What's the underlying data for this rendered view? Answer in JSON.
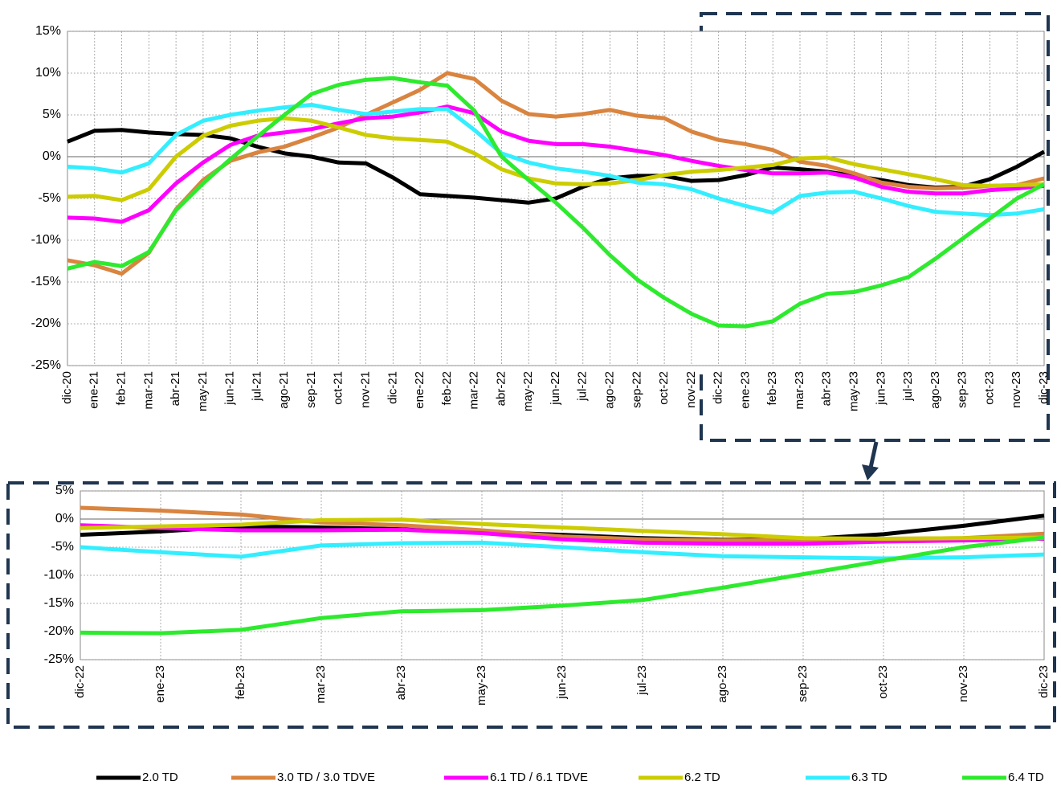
{
  "chart_data": [
    {
      "type": "line",
      "categories": [
        "dic-20",
        "ene-21",
        "feb-21",
        "mar-21",
        "abr-21",
        "may-21",
        "jun-21",
        "jul-21",
        "ago-21",
        "sep-21",
        "oct-21",
        "nov-21",
        "dic-21",
        "ene-22",
        "feb-22",
        "mar-22",
        "abr-22",
        "may-22",
        "jun-22",
        "jul-22",
        "ago-22",
        "sep-22",
        "oct-22",
        "nov-22",
        "dic-22",
        "ene-23",
        "feb-23",
        "mar-23",
        "abr-23",
        "may-23",
        "jun-23",
        "jul-23",
        "ago-23",
        "sep-23",
        "oct-23",
        "nov-23",
        "dic-23"
      ],
      "ylim": [
        -25,
        15
      ],
      "yticks": [
        {
          "value": -25,
          "label": "-25%"
        },
        {
          "value": -20,
          "label": "-20%"
        },
        {
          "value": -15,
          "label": "-15%"
        },
        {
          "value": -10,
          "label": "-10%"
        },
        {
          "value": -5,
          "label": "-5%"
        },
        {
          "value": 0,
          "label": "0%"
        },
        {
          "value": 5,
          "label": "5%"
        },
        {
          "value": 10,
          "label": "10%"
        },
        {
          "value": 15,
          "label": "15%"
        }
      ],
      "grid": true,
      "legend": "bottom",
      "series": [
        {
          "name": "2.0 TD",
          "color": "#000000",
          "values": [
            1.8,
            3.1,
            3.2,
            2.9,
            2.7,
            2.6,
            2.2,
            1.2,
            0.4,
            0,
            -0.7,
            -0.8,
            -2.5,
            -4.5,
            -4.7,
            -4.9,
            -5.2,
            -5.5,
            -5,
            -3.6,
            -2.6,
            -2.3,
            -2.3,
            -2.9,
            -2.8,
            -2.2,
            -1.3,
            -1.5,
            -1.8,
            -2.3,
            -2.8,
            -3.4,
            -3.7,
            -3.6,
            -2.7,
            -1.2,
            0.6
          ]
        },
        {
          "name": "3.0 TD / 3.0 TDVE",
          "color": "#d9843f",
          "values": [
            -12.4,
            -13,
            -14,
            -11.5,
            -6.3,
            -2.8,
            -0.5,
            0.5,
            1.2,
            2.3,
            3.5,
            5,
            6.5,
            8,
            10,
            9.3,
            6.7,
            5.1,
            4.8,
            5.1,
            5.6,
            4.9,
            4.6,
            3,
            2,
            1.5,
            0.8,
            -0.6,
            -1.1,
            -2,
            -3.1,
            -3.6,
            -3.8,
            -3.7,
            -3.5,
            -3.4,
            -2.6
          ]
        },
        {
          "name": "6.1 TD / 6.1 TDVE",
          "color": "#ff00ff",
          "values": [
            -7.3,
            -7.4,
            -7.8,
            -6.4,
            -3.2,
            -0.7,
            1.4,
            2.5,
            2.9,
            3.3,
            4,
            4.6,
            4.8,
            5.3,
            6,
            5.2,
            3,
            1.9,
            1.5,
            1.5,
            1.2,
            0.7,
            0.2,
            -0.5,
            -1.1,
            -1.6,
            -2,
            -2,
            -1.9,
            -2.5,
            -3.6,
            -4.2,
            -4.4,
            -4.4,
            -4,
            -3.8,
            -3.5
          ]
        },
        {
          "name": "6.2 TD",
          "color": "#cccc00",
          "values": [
            -4.8,
            -4.7,
            -5.2,
            -3.9,
            0,
            2.5,
            3.7,
            4.3,
            4.6,
            4.3,
            3.5,
            2.6,
            2.2,
            2,
            1.8,
            0.4,
            -1.5,
            -2.6,
            -3.2,
            -3.3,
            -3.2,
            -2.8,
            -2.2,
            -1.8,
            -1.6,
            -1.3,
            -1,
            -0.2,
            -0.1,
            -0.9,
            -1.5,
            -2.1,
            -2.7,
            -3.4,
            -3.5,
            -3.4,
            -3.3
          ]
        },
        {
          "name": "6.3 TD",
          "color": "#33eeff",
          "values": [
            -1.2,
            -1.4,
            -1.9,
            -0.8,
            2.6,
            4.3,
            5,
            5.5,
            5.9,
            6.2,
            5.6,
            5.1,
            5.4,
            5.7,
            5.7,
            3.2,
            0.4,
            -0.7,
            -1.4,
            -1.8,
            -2.3,
            -3.1,
            -3.3,
            -3.9,
            -5,
            -5.9,
            -6.7,
            -4.7,
            -4.3,
            -4.2,
            -5,
            -5.9,
            -6.6,
            -6.8,
            -7,
            -6.8,
            -6.3
          ]
        },
        {
          "name": "6.4 TD",
          "color": "#2eea2e",
          "values": [
            -13.4,
            -12.6,
            -13.1,
            -11.4,
            -6.4,
            -3.2,
            -0.3,
            2.4,
            5,
            7.5,
            8.6,
            9.2,
            9.4,
            8.9,
            8.5,
            5.5,
            0,
            -2.8,
            -5.5,
            -8.5,
            -11.8,
            -14.7,
            -16.9,
            -18.8,
            -20.2,
            -20.3,
            -19.7,
            -17.6,
            -16.4,
            -16.2,
            -15.4,
            -14.4,
            -12.2,
            -9.8,
            -7.4,
            -5,
            -3.3
          ]
        }
      ]
    },
    {
      "type": "line",
      "categories": [
        "dic-22",
        "ene-23",
        "feb-23",
        "mar-23",
        "abr-23",
        "may-23",
        "jun-23",
        "jul-23",
        "ago-23",
        "sep-23",
        "oct-23",
        "nov-23",
        "dic-23"
      ],
      "ylim": [
        -25,
        5
      ],
      "yticks": [
        {
          "value": -25,
          "label": "-25%"
        },
        {
          "value": -20,
          "label": "-20%"
        },
        {
          "value": -15,
          "label": "-15%"
        },
        {
          "value": -10,
          "label": "-10%"
        },
        {
          "value": -5,
          "label": "-5%"
        },
        {
          "value": 0,
          "label": "0%"
        },
        {
          "value": 5,
          "label": "5%"
        }
      ],
      "grid": true,
      "series": [
        {
          "color": "#000000",
          "values": [
            -2.8,
            -2.2,
            -1.3,
            -1.5,
            -1.8,
            -2.3,
            -2.8,
            -3.4,
            -3.7,
            -3.6,
            -2.7,
            -1.2,
            0.6
          ]
        },
        {
          "color": "#d9843f",
          "values": [
            2,
            1.5,
            0.8,
            -0.6,
            -1.1,
            -2,
            -3.1,
            -3.6,
            -3.8,
            -3.7,
            -3.5,
            -3.4,
            -2.6
          ]
        },
        {
          "color": "#ff00ff",
          "values": [
            -1.1,
            -1.6,
            -2,
            -2,
            -1.9,
            -2.5,
            -3.6,
            -4.2,
            -4.4,
            -4.4,
            -4,
            -3.8,
            -3.5
          ]
        },
        {
          "color": "#cccc00",
          "values": [
            -1.6,
            -1.3,
            -1,
            -0.2,
            -0.1,
            -0.9,
            -1.5,
            -2.1,
            -2.7,
            -3.4,
            -3.5,
            -3.4,
            -3.3
          ]
        },
        {
          "color": "#33eeff",
          "values": [
            -5,
            -5.9,
            -6.7,
            -4.7,
            -4.3,
            -4.2,
            -5,
            -5.9,
            -6.6,
            -6.8,
            -7,
            -6.8,
            -6.3
          ]
        },
        {
          "color": "#2eea2e",
          "values": [
            -20.2,
            -20.3,
            -19.7,
            -17.6,
            -16.4,
            -16.2,
            -15.4,
            -14.4,
            -12.2,
            -9.8,
            -7.4,
            -5,
            -3.3
          ]
        }
      ]
    }
  ]
}
